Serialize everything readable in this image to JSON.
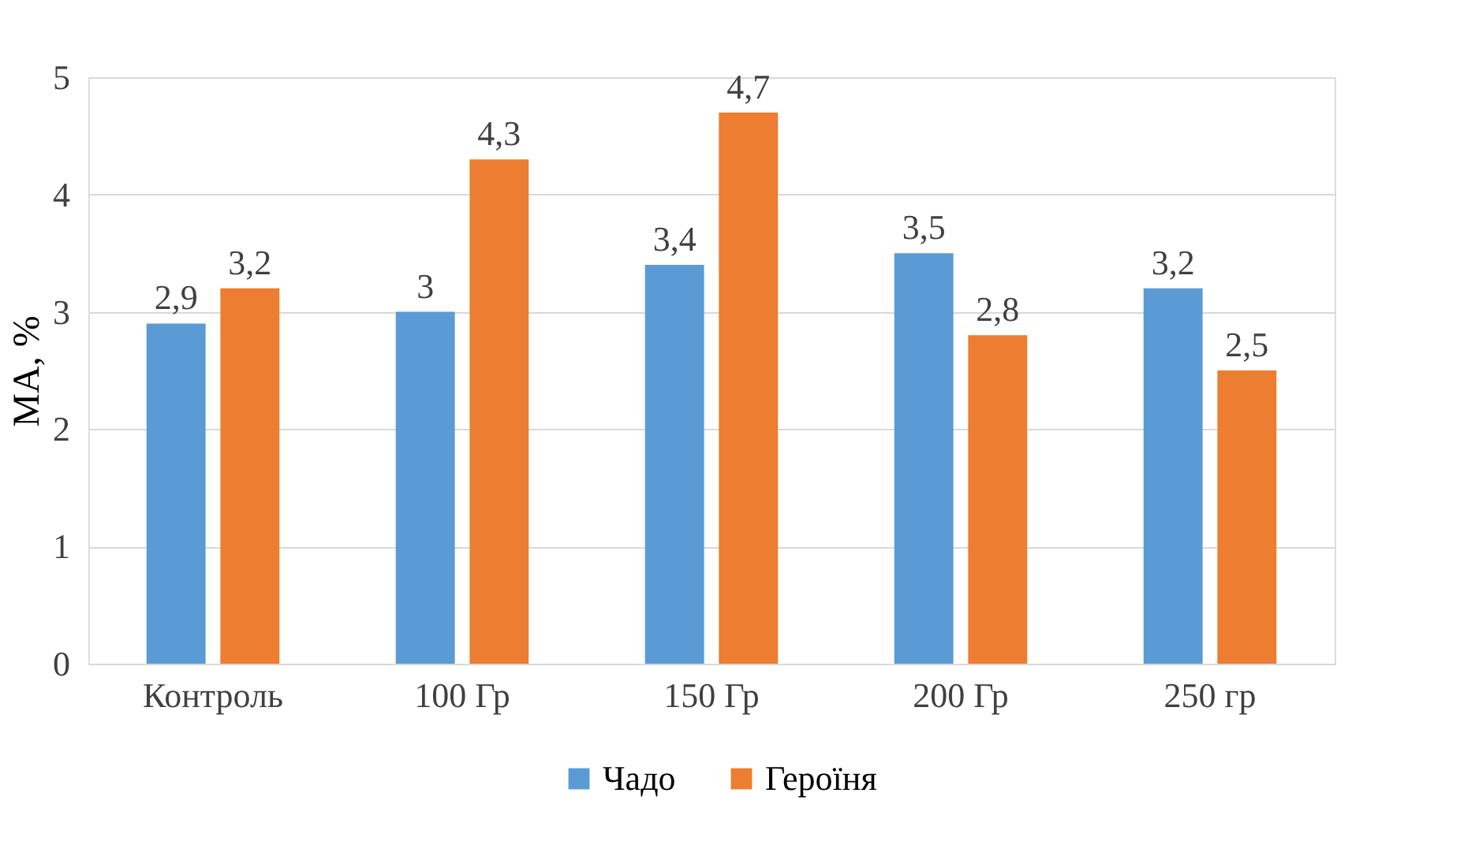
{
  "chart_data": {
    "type": "bar",
    "ylabel": "МА, %",
    "categories": [
      "Контроль",
      "100 Гр",
      "150 Гр",
      "200 Гр",
      "250 гр"
    ],
    "series": [
      {
        "name": "Чадо",
        "color": "#5b9bd5",
        "values": [
          2.9,
          3,
          3.4,
          3.5,
          3.2
        ],
        "value_labels": [
          "2,9",
          "3",
          "3,4",
          "3,5",
          "3,2"
        ]
      },
      {
        "name": "Героїня",
        "color": "#ed7d31",
        "values": [
          3.2,
          4.3,
          4.7,
          2.8,
          2.5
        ],
        "value_labels": [
          "3,2",
          "4,3",
          "4,7",
          "2,8",
          "2,5"
        ]
      }
    ],
    "ylim": [
      0,
      5
    ],
    "yticks": [
      0,
      1,
      2,
      3,
      4,
      5
    ],
    "grid": "y",
    "legend": "bottom"
  }
}
